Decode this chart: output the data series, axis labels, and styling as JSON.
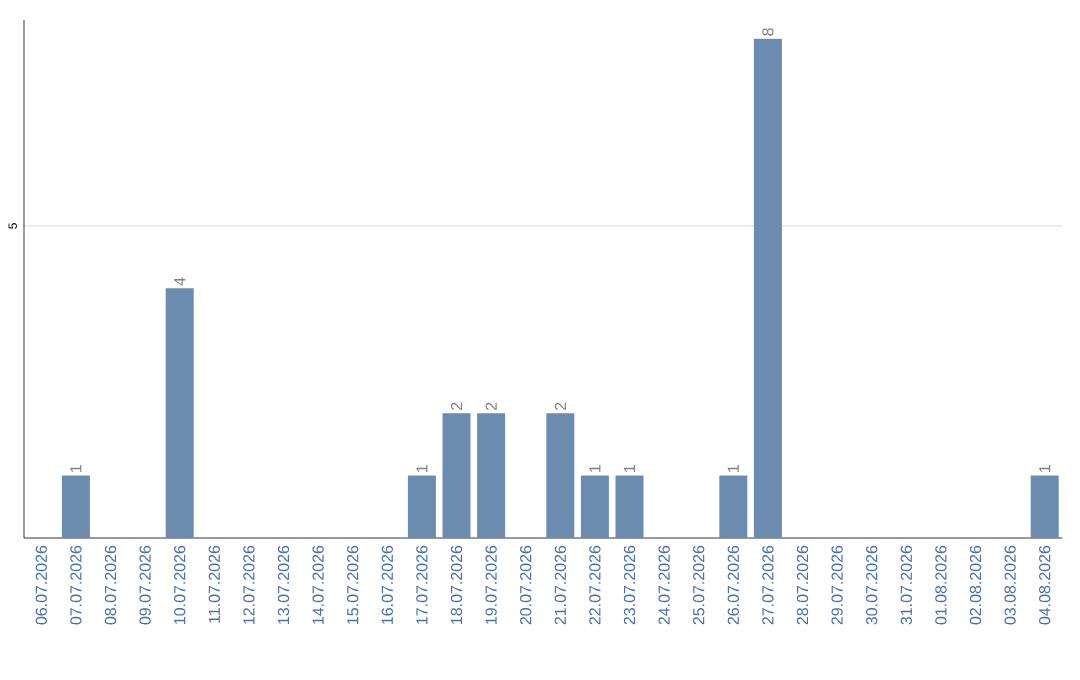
{
  "chart_data": {
    "type": "bar",
    "categories": [
      "06.07.2026",
      "07.07.2026",
      "08.07.2026",
      "09.07.2026",
      "10.07.2026",
      "11.07.2026",
      "12.07.2026",
      "13.07.2026",
      "14.07.2026",
      "15.07.2026",
      "16.07.2026",
      "17.07.2026",
      "18.07.2026",
      "19.07.2026",
      "20.07.2026",
      "21.07.2026",
      "22.07.2026",
      "23.07.2026",
      "24.07.2026",
      "25.07.2026",
      "26.07.2026",
      "27.07.2026",
      "28.07.2026",
      "29.07.2026",
      "30.07.2026",
      "31.07.2026",
      "01.08.2026",
      "02.08.2026",
      "03.08.2026",
      "04.08.2026"
    ],
    "values": [
      0,
      1,
      0,
      0,
      4,
      0,
      0,
      0,
      0,
      0,
      0,
      1,
      2,
      2,
      0,
      2,
      1,
      1,
      0,
      0,
      1,
      8,
      0,
      0,
      0,
      0,
      0,
      0,
      0,
      1
    ],
    "color": "#6b8cae",
    "value_labels": [
      null,
      "1",
      null,
      null,
      "4",
      null,
      null,
      null,
      null,
      null,
      null,
      "1",
      "2",
      "2",
      null,
      "2",
      "1",
      "1",
      null,
      null,
      "1",
      "8",
      null,
      null,
      null,
      null,
      null,
      null,
      null,
      "1"
    ],
    "ylim": [
      0,
      8.3
    ],
    "yticks": [
      5
    ],
    "grid": "y"
  }
}
